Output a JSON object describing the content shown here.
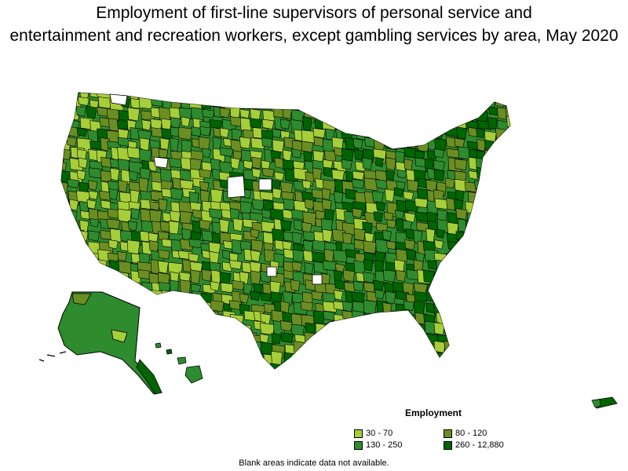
{
  "title": {
    "line1": "Employment of first-line supervisors of personal service and",
    "line2": "entertainment and recreation workers, except gambling services by area, May 2020"
  },
  "legend": {
    "title": "Employment",
    "items": [
      {
        "label": "30 - 70",
        "color": "#a6ce39"
      },
      {
        "label": "80 - 120",
        "color": "#6b8e23"
      },
      {
        "label": "130 - 250",
        "color": "#2e8b2e"
      },
      {
        "label": "260 - 12,880",
        "color": "#006400"
      }
    ]
  },
  "footnote": "Blank areas indicate data not available."
}
